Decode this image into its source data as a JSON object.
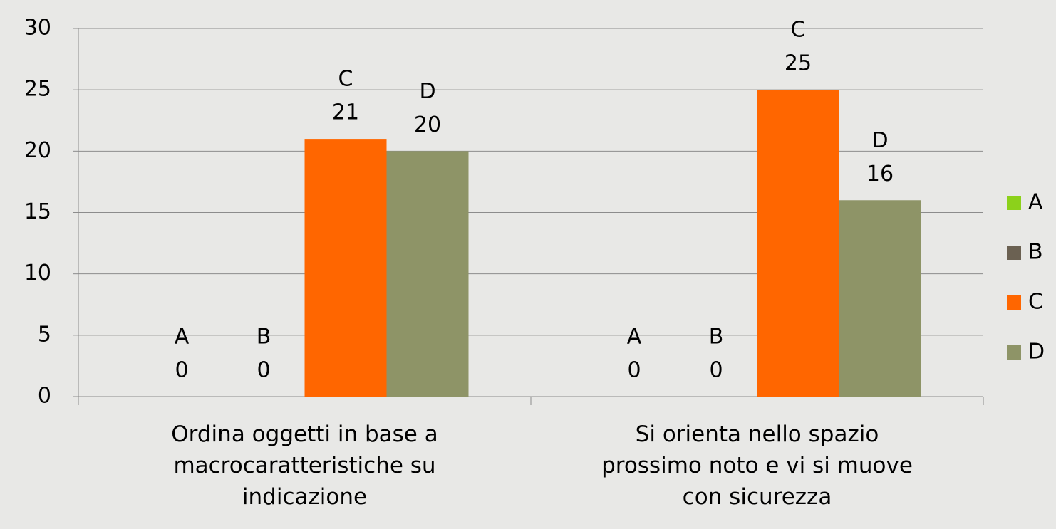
{
  "chart_data": {
    "type": "bar",
    "categories": [
      "Ordina oggetti in base a\nmacrocaratteristiche su\nindicazione",
      "Si orienta nello spazio\nprossimo noto e vi si muove\ncon sicurezza"
    ],
    "series": [
      {
        "name": "A",
        "color": "#8cd11b",
        "values": [
          0,
          0
        ]
      },
      {
        "name": "B",
        "color": "#6b6152",
        "values": [
          0,
          0
        ]
      },
      {
        "name": "C",
        "color": "#ff6600",
        "values": [
          21,
          25
        ]
      },
      {
        "name": "D",
        "color": "#8e9467",
        "values": [
          20,
          16
        ]
      }
    ],
    "ylim": [
      0,
      30
    ],
    "yticks": [
      0,
      5,
      10,
      15,
      20,
      25,
      30
    ],
    "grid": true,
    "legend": "right"
  }
}
